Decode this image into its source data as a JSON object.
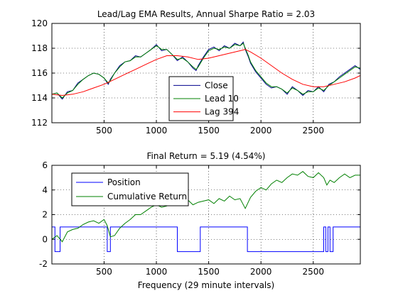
{
  "figure": {
    "xlabel": "Frequency (29 minute intervals)"
  },
  "colors": {
    "blue": "#0000ff",
    "green": "#008000",
    "red": "#ff0000",
    "close": "#00008b"
  },
  "chart_data": [
    {
      "type": "line",
      "title": "Lead/Lag EMA Results, Annual Sharpe Ratio = 2.03",
      "xlabel": "",
      "ylabel": "",
      "xlim": [
        1,
        2950
      ],
      "ylim": [
        112,
        120
      ],
      "xticks": [
        500,
        1000,
        1500,
        2000,
        2500
      ],
      "yticks": [
        112,
        114,
        116,
        118,
        120
      ],
      "grid": true,
      "legend": "lower-center",
      "series": [
        {
          "name": "Close",
          "color": "#00008b",
          "x": [
            1,
            50,
            100,
            150,
            200,
            250,
            300,
            350,
            400,
            450,
            500,
            540,
            560,
            600,
            650,
            700,
            750,
            800,
            850,
            900,
            950,
            1000,
            1020,
            1050,
            1100,
            1150,
            1200,
            1250,
            1300,
            1350,
            1380,
            1400,
            1450,
            1500,
            1550,
            1600,
            1650,
            1700,
            1750,
            1800,
            1830,
            1850,
            1880,
            1900,
            1950,
            2000,
            2050,
            2100,
            2150,
            2200,
            2250,
            2300,
            2350,
            2400,
            2450,
            2500,
            2550,
            2600,
            2650,
            2700,
            2750,
            2800,
            2850,
            2900,
            2950
          ],
          "y": [
            114.3,
            114.4,
            113.9,
            114.5,
            114.6,
            115.2,
            115.5,
            115.8,
            116.0,
            115.9,
            115.6,
            115.1,
            115.5,
            116.0,
            116.6,
            116.9,
            117.0,
            117.4,
            117.3,
            117.6,
            117.9,
            118.3,
            118.1,
            117.8,
            117.9,
            117.5,
            117.0,
            117.3,
            116.9,
            116.4,
            116.2,
            116.6,
            117.3,
            117.9,
            118.1,
            117.8,
            118.2,
            118.0,
            118.4,
            118.2,
            118.5,
            117.9,
            117.3,
            116.8,
            116.1,
            115.6,
            115.1,
            114.8,
            114.9,
            114.7,
            114.3,
            114.9,
            114.6,
            114.2,
            114.6,
            114.5,
            114.9,
            114.5,
            115.1,
            115.3,
            115.7,
            116.0,
            116.3,
            116.6,
            116.3
          ]
        },
        {
          "name": "Lead 10",
          "color": "#008000",
          "x": [
            1,
            50,
            100,
            150,
            200,
            250,
            300,
            350,
            400,
            450,
            500,
            540,
            560,
            600,
            650,
            700,
            750,
            800,
            850,
            900,
            950,
            1000,
            1020,
            1050,
            1100,
            1150,
            1200,
            1250,
            1300,
            1350,
            1380,
            1400,
            1450,
            1500,
            1550,
            1600,
            1650,
            1700,
            1750,
            1800,
            1830,
            1850,
            1880,
            1900,
            1950,
            2000,
            2050,
            2100,
            2150,
            2200,
            2250,
            2300,
            2350,
            2400,
            2450,
            2500,
            2550,
            2600,
            2650,
            2700,
            2750,
            2800,
            2850,
            2900,
            2950
          ],
          "y": [
            114.3,
            114.4,
            114.0,
            114.4,
            114.6,
            115.1,
            115.5,
            115.8,
            116.0,
            115.9,
            115.6,
            115.2,
            115.4,
            116.0,
            116.5,
            116.9,
            117.0,
            117.3,
            117.3,
            117.6,
            117.9,
            118.2,
            118.1,
            117.9,
            117.9,
            117.5,
            117.1,
            117.2,
            116.9,
            116.5,
            116.3,
            116.5,
            117.2,
            117.8,
            118.0,
            117.9,
            118.1,
            118.0,
            118.3,
            118.2,
            118.4,
            118.0,
            117.4,
            116.9,
            116.2,
            115.7,
            115.2,
            114.9,
            114.9,
            114.7,
            114.4,
            114.8,
            114.6,
            114.3,
            114.5,
            114.5,
            114.8,
            114.6,
            115.0,
            115.3,
            115.6,
            115.9,
            116.2,
            116.5,
            116.4
          ]
        },
        {
          "name": "Lag 394",
          "color": "#ff0000",
          "x": [
            1,
            100,
            200,
            300,
            400,
            500,
            600,
            700,
            800,
            900,
            1000,
            1100,
            1200,
            1300,
            1400,
            1500,
            1600,
            1700,
            1800,
            1850,
            1900,
            2000,
            2100,
            2200,
            2300,
            2400,
            2500,
            2600,
            2700,
            2800,
            2900,
            2950
          ],
          "y": [
            114.3,
            114.2,
            114.3,
            114.5,
            114.8,
            115.1,
            115.5,
            115.9,
            116.3,
            116.7,
            117.1,
            117.4,
            117.4,
            117.3,
            117.1,
            117.2,
            117.4,
            117.6,
            117.8,
            117.9,
            117.7,
            117.2,
            116.6,
            116.0,
            115.5,
            115.1,
            114.9,
            114.9,
            115.1,
            115.3,
            115.6,
            115.8
          ]
        }
      ]
    },
    {
      "type": "line",
      "title": "Final Return = 5.19 (4.54%)",
      "xlabel": "Frequency (29 minute intervals)",
      "ylabel": "",
      "xlim": [
        1,
        2950
      ],
      "ylim": [
        -2,
        6
      ],
      "xticks": [
        500,
        1000,
        1500,
        2000,
        2500
      ],
      "yticks": [
        -2,
        0,
        2,
        4,
        6
      ],
      "grid": true,
      "legend": "top-left",
      "series": [
        {
          "name": "Position",
          "color": "#0000ff",
          "step": true,
          "x": [
            1,
            30,
            80,
            530,
            560,
            1200,
            1420,
            1870,
            2600,
            2620,
            2640,
            2660,
            2690,
            2950
          ],
          "y": [
            1,
            -1,
            1,
            -1,
            1,
            -1,
            1,
            -1,
            1,
            -1,
            1,
            -1,
            1,
            1
          ]
        },
        {
          "name": "Cumulative Return",
          "color": "#008000",
          "x": [
            1,
            50,
            100,
            150,
            200,
            250,
            300,
            350,
            400,
            450,
            500,
            530,
            560,
            600,
            650,
            700,
            750,
            800,
            850,
            900,
            950,
            1000,
            1050,
            1100,
            1150,
            1200,
            1250,
            1300,
            1350,
            1400,
            1450,
            1500,
            1550,
            1600,
            1650,
            1700,
            1750,
            1800,
            1850,
            1900,
            1950,
            2000,
            2050,
            2100,
            2150,
            2200,
            2250,
            2300,
            2350,
            2400,
            2450,
            2500,
            2550,
            2600,
            2630,
            2660,
            2700,
            2750,
            2800,
            2850,
            2900,
            2950
          ],
          "y": [
            0.0,
            0.3,
            -0.2,
            0.6,
            0.8,
            0.9,
            1.2,
            1.4,
            1.5,
            1.3,
            1.6,
            1.1,
            0.2,
            0.3,
            0.9,
            1.3,
            1.6,
            2.0,
            2.0,
            2.3,
            2.6,
            2.8,
            2.6,
            2.7,
            2.9,
            3.2,
            2.9,
            3.2,
            2.8,
            3.0,
            3.1,
            3.2,
            2.9,
            3.3,
            3.1,
            3.5,
            3.2,
            3.3,
            2.5,
            3.4,
            3.9,
            4.2,
            4.0,
            4.5,
            4.8,
            4.6,
            5.0,
            5.3,
            5.2,
            5.5,
            5.1,
            5.0,
            5.4,
            5.0,
            4.4,
            4.8,
            4.6,
            5.0,
            5.3,
            5.0,
            5.2,
            5.2
          ]
        }
      ]
    }
  ]
}
